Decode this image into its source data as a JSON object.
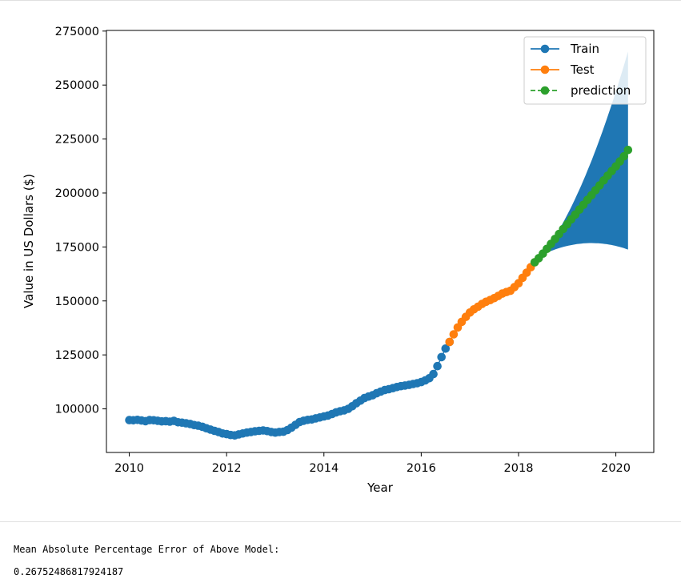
{
  "chart_data": {
    "type": "line",
    "title": "",
    "xlabel": "Year",
    "ylabel": "Value in US Dollars ($)",
    "xlim": [
      2009.53,
      2020.78
    ],
    "ylim": [
      79800,
      275300
    ],
    "xticks": [
      "2010",
      "2012",
      "2014",
      "2016",
      "2018",
      "2020"
    ],
    "yticks": [
      "100000",
      "125000",
      "150000",
      "175000",
      "200000",
      "225000",
      "250000",
      "275000"
    ],
    "legend_position": "upper right",
    "colors": {
      "train": "#1f77b4",
      "test": "#ff7f0e",
      "prediction": "#2ca02c",
      "band": "#1f77b4"
    },
    "series": [
      {
        "name": "Train",
        "style": "solid line with circle markers",
        "x": [
          "2010-01",
          "2010-02",
          "2010-03",
          "2010-04",
          "2010-05",
          "2010-06",
          "2010-07",
          "2010-08",
          "2010-09",
          "2010-10",
          "2010-11",
          "2010-12",
          "2011-01",
          "2011-02",
          "2011-03",
          "2011-04",
          "2011-05",
          "2011-06",
          "2011-07",
          "2011-08",
          "2011-09",
          "2011-10",
          "2011-11",
          "2011-12",
          "2012-01",
          "2012-02",
          "2012-03",
          "2012-04",
          "2012-05",
          "2012-06",
          "2012-07",
          "2012-08",
          "2012-09",
          "2012-10",
          "2012-11",
          "2012-12",
          "2013-01",
          "2013-02",
          "2013-03",
          "2013-04",
          "2013-05",
          "2013-06",
          "2013-07",
          "2013-08",
          "2013-09",
          "2013-10",
          "2013-11",
          "2013-12",
          "2014-01",
          "2014-02",
          "2014-03",
          "2014-04",
          "2014-05",
          "2014-06",
          "2014-07",
          "2014-08",
          "2014-09",
          "2014-10",
          "2014-11",
          "2014-12",
          "2015-01",
          "2015-02",
          "2015-03",
          "2015-04",
          "2015-05",
          "2015-06",
          "2015-07",
          "2015-08",
          "2015-09",
          "2015-10",
          "2015-11",
          "2015-12",
          "2016-01",
          "2016-02",
          "2016-03",
          "2016-04",
          "2016-05",
          "2016-06",
          "2016-07",
          "2016-08"
        ],
        "y": [
          94800,
          94700,
          94900,
          94600,
          94300,
          94800,
          94700,
          94500,
          94200,
          94300,
          94100,
          94400,
          93800,
          93600,
          93300,
          93000,
          92500,
          92200,
          91700,
          91000,
          90400,
          89800,
          89300,
          88600,
          88300,
          87900,
          87700,
          88200,
          88600,
          89000,
          89300,
          89600,
          89800,
          90000,
          89700,
          89300,
          89000,
          89300,
          89400,
          90200,
          91300,
          92600,
          93900,
          94500,
          94900,
          95100,
          95600,
          96000,
          96500,
          96900,
          97600,
          98400,
          98900,
          99300,
          100000,
          101200,
          102600,
          103800,
          105000,
          105700,
          106300,
          107200,
          108000,
          108700,
          109100,
          109600,
          110100,
          110500,
          110800,
          111100,
          111500,
          111900,
          112400,
          113200,
          114200,
          116100,
          119800,
          124000,
          127900,
          131000
        ]
      },
      {
        "name": "Test",
        "style": "solid line with circle markers",
        "x": [
          "2016-08",
          "2016-09",
          "2016-10",
          "2016-11",
          "2016-12",
          "2017-01",
          "2017-02",
          "2017-03",
          "2017-04",
          "2017-05",
          "2017-06",
          "2017-07",
          "2017-08",
          "2017-09",
          "2017-10",
          "2017-11",
          "2017-12",
          "2018-01",
          "2018-02",
          "2018-03",
          "2018-04",
          "2018-05"
        ],
        "y": [
          131000,
          134500,
          137700,
          140300,
          142600,
          144600,
          146100,
          147300,
          148600,
          149600,
          150400,
          151300,
          152300,
          153400,
          154100,
          154700,
          156400,
          158200,
          160700,
          163100,
          165600,
          167900
        ]
      },
      {
        "name": "prediction",
        "style": "dashed line with circle markers",
        "x": [
          "2018-05",
          "2018-06",
          "2018-07",
          "2018-08",
          "2018-09",
          "2018-10",
          "2018-11",
          "2018-12",
          "2019-01",
          "2019-02",
          "2019-03",
          "2019-04",
          "2019-05",
          "2019-06",
          "2019-07",
          "2019-08",
          "2019-09",
          "2019-10",
          "2019-11",
          "2019-12",
          "2020-01",
          "2020-02",
          "2020-03",
          "2020-04"
        ],
        "y": [
          167900,
          169800,
          171900,
          174100,
          176400,
          178700,
          181000,
          183300,
          185500,
          187800,
          190000,
          192300,
          194500,
          196800,
          199000,
          201300,
          203500,
          205800,
          208000,
          210200,
          212300,
          214600,
          217000,
          219900
        ]
      }
    ],
    "confidence_band": {
      "x": [
        "2018-07",
        "2019-07",
        "2020-04"
      ],
      "lower": [
        171500,
        176800,
        173800
      ],
      "upper": [
        171500,
        215000,
        265500
      ]
    }
  },
  "output": {
    "line1": "Mean Absolute Percentage Error of Above Model:",
    "line2": "0.26752486817924187"
  }
}
